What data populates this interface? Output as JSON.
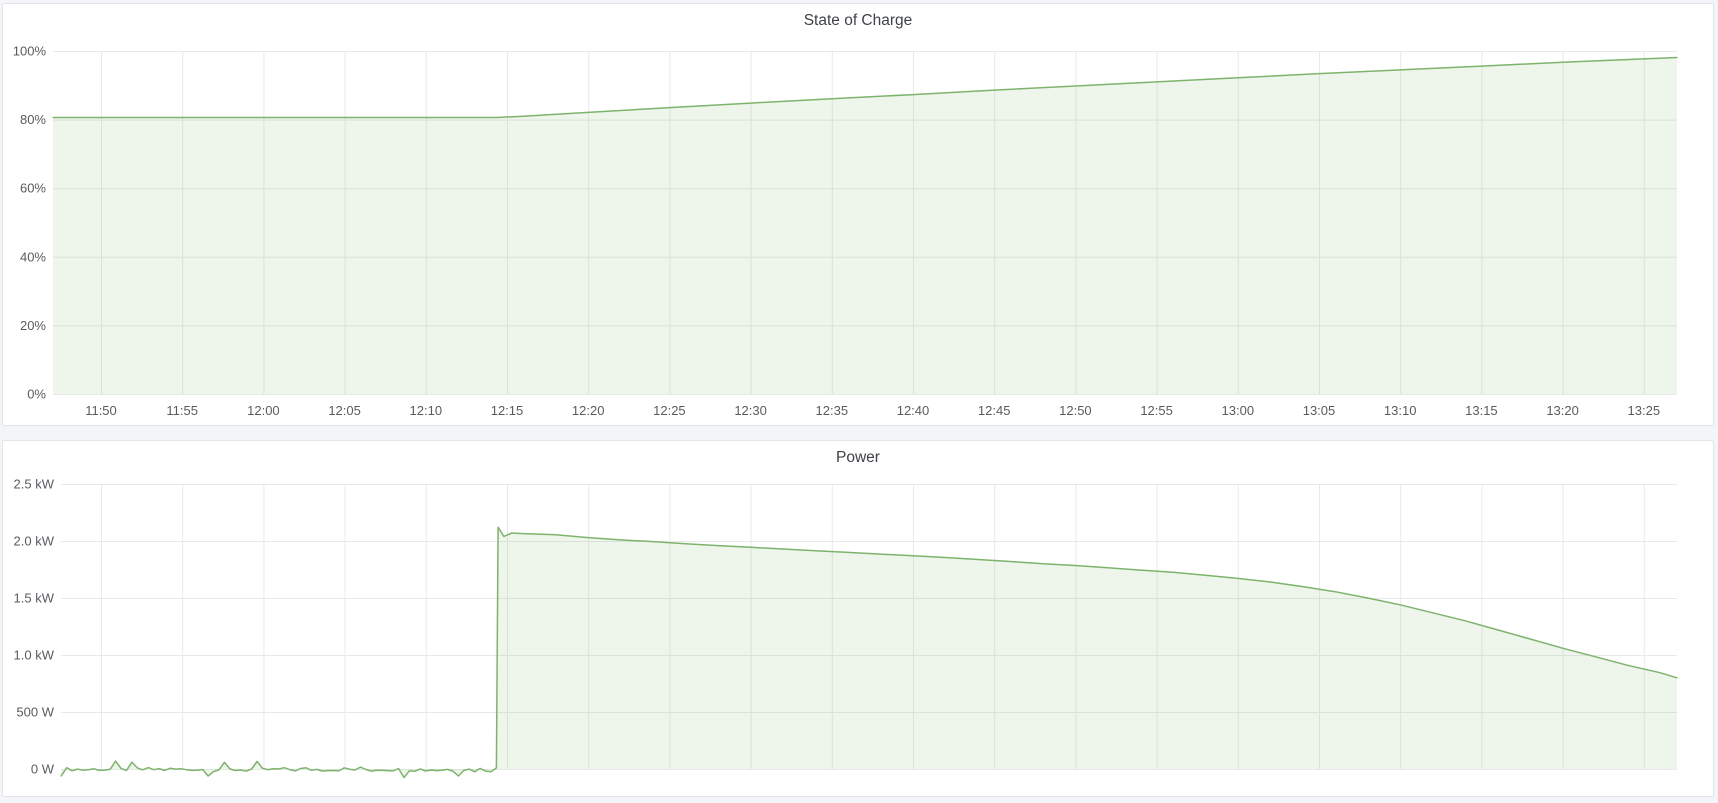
{
  "page": {
    "background": "#f4f5f9",
    "panel_background": "#ffffff",
    "panel_border": "#e3e5e8",
    "gridline_color": "#e8e9eb",
    "tick_label_color": "#595b60",
    "title_color": "#3e4248",
    "series_line_color": "#7db46c",
    "series_fill_color": "rgba(119,172,92,0.12)"
  },
  "time_axis": {
    "ticks": [
      {
        "m": 710,
        "label": "11:50"
      },
      {
        "m": 715,
        "label": "11:55"
      },
      {
        "m": 720,
        "label": "12:00"
      },
      {
        "m": 725,
        "label": "12:05"
      },
      {
        "m": 730,
        "label": "12:10"
      },
      {
        "m": 735,
        "label": "12:15"
      },
      {
        "m": 740,
        "label": "12:20"
      },
      {
        "m": 745,
        "label": "12:25"
      },
      {
        "m": 750,
        "label": "12:30"
      },
      {
        "m": 755,
        "label": "12:35"
      },
      {
        "m": 760,
        "label": "12:40"
      },
      {
        "m": 765,
        "label": "12:45"
      },
      {
        "m": 770,
        "label": "12:50"
      },
      {
        "m": 775,
        "label": "12:55"
      },
      {
        "m": 780,
        "label": "13:00"
      },
      {
        "m": 785,
        "label": "13:05"
      },
      {
        "m": 790,
        "label": "13:10"
      },
      {
        "m": 795,
        "label": "13:15"
      },
      {
        "m": 800,
        "label": "13:20"
      },
      {
        "m": 805,
        "label": "13:25"
      }
    ],
    "domain_minutes": [
      707.05,
      807.05
    ],
    "note_m_is": "minutes since midnight (11:47-13:27 window)"
  },
  "chart_data": [
    {
      "type": "area",
      "title": "State of Charge",
      "unit": "percent",
      "ylim": [
        0,
        100
      ],
      "grid": true,
      "legend": "none",
      "show_x_labels": true,
      "y_ticks": [
        {
          "v": 0,
          "label": "0%"
        },
        {
          "v": 20,
          "label": "20%"
        },
        {
          "v": 40,
          "label": "40%"
        },
        {
          "v": 60,
          "label": "60%"
        },
        {
          "v": 80,
          "label": "80%"
        },
        {
          "v": 100,
          "label": "100%"
        }
      ],
      "points": [
        [
          707.05,
          80.6
        ],
        [
          715,
          80.6
        ],
        [
          725,
          80.6
        ],
        [
          730,
          80.6
        ],
        [
          734.4,
          80.6
        ],
        [
          736,
          81.0
        ],
        [
          740,
          82.1
        ],
        [
          745,
          83.5
        ],
        [
          750,
          84.8
        ],
        [
          755,
          86.1
        ],
        [
          760,
          87.3
        ],
        [
          765,
          88.6
        ],
        [
          770,
          89.8
        ],
        [
          775,
          91.0
        ],
        [
          780,
          92.2
        ],
        [
          785,
          93.4
        ],
        [
          790,
          94.5
        ],
        [
          795,
          95.6
        ],
        [
          800,
          96.7
        ],
        [
          805,
          97.7
        ],
        [
          807.04,
          98.1
        ]
      ]
    },
    {
      "type": "area",
      "title": "Power",
      "unit": "watt",
      "ylim": [
        0,
        2.5
      ],
      "grid": true,
      "legend": "none",
      "show_x_labels": false,
      "y_ticks": [
        {
          "v": 0,
          "label": "0 W"
        },
        {
          "v": 0.5,
          "label": "500 W"
        },
        {
          "v": 1,
          "label": "1.0 kW"
        },
        {
          "v": 1.5,
          "label": "1.5 kW"
        },
        {
          "v": 2,
          "label": "2.0 kW"
        },
        {
          "v": 2.5,
          "label": "2.5 kW"
        }
      ],
      "baseline_noise": {
        "from": 707.55,
        "to": 734.25,
        "step": 0.335,
        "base_kw": -0.004,
        "amplitude_kw": 0.042,
        "spike_up_kw": 0.048,
        "spike_down_kw": 0.045
      },
      "points": [
        [
          734.35,
          0.01
        ],
        [
          734.45,
          2.12
        ],
        [
          734.8,
          2.04
        ],
        [
          735.3,
          2.07
        ],
        [
          736,
          2.065
        ],
        [
          738,
          2.055
        ],
        [
          740,
          2.03
        ],
        [
          742,
          2.01
        ],
        [
          744,
          1.995
        ],
        [
          746,
          1.975
        ],
        [
          748,
          1.96
        ],
        [
          750,
          1.945
        ],
        [
          752,
          1.93
        ],
        [
          754,
          1.915
        ],
        [
          756,
          1.9
        ],
        [
          758,
          1.885
        ],
        [
          760,
          1.87
        ],
        [
          762,
          1.855
        ],
        [
          764,
          1.838
        ],
        [
          766,
          1.82
        ],
        [
          768,
          1.8
        ],
        [
          770,
          1.785
        ],
        [
          772,
          1.765
        ],
        [
          774,
          1.745
        ],
        [
          776,
          1.725
        ],
        [
          778,
          1.7
        ],
        [
          780,
          1.672
        ],
        [
          782,
          1.64
        ],
        [
          784,
          1.6
        ],
        [
          786,
          1.555
        ],
        [
          788,
          1.5
        ],
        [
          790,
          1.44
        ],
        [
          792,
          1.37
        ],
        [
          794,
          1.3
        ],
        [
          796,
          1.22
        ],
        [
          798,
          1.14
        ],
        [
          800,
          1.06
        ],
        [
          802,
          0.985
        ],
        [
          804,
          0.91
        ],
        [
          806,
          0.845
        ],
        [
          807.04,
          0.8
        ]
      ]
    }
  ]
}
